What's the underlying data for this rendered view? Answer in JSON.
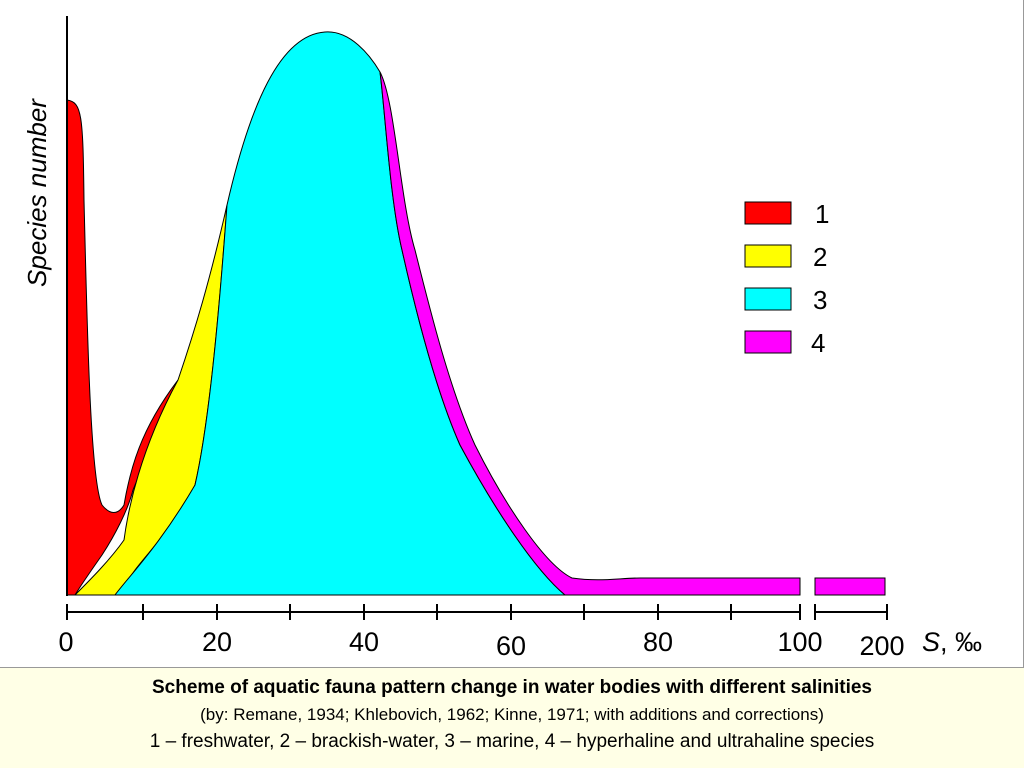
{
  "chart_data": {
    "type": "area",
    "ylabel": "Species number",
    "xlabel": "S, ‰",
    "xlabel_italic_part": "S",
    "xlabel_rest": ", ‰",
    "x_ticks_major": [
      "0",
      "20",
      "40",
      "60",
      "80",
      "100",
      "200"
    ],
    "x_axis_break": "between 100 and 200",
    "legend": {
      "position": "right",
      "entries": [
        {
          "label": "1",
          "color": "#ff0000"
        },
        {
          "label": "2",
          "color": "#ffff00"
        },
        {
          "label": "3",
          "color": "#00ffff"
        },
        {
          "label": "4",
          "color": "#ff00ff"
        }
      ]
    },
    "grid": false,
    "y_ticks": "none",
    "series": [
      {
        "label": "1",
        "color": "#ff0000",
        "salinity_range": [
          0,
          15
        ],
        "peak_at": 0
      },
      {
        "label": "2",
        "color": "#ffff00",
        "salinity_range": [
          2,
          22
        ],
        "peak_at": 22
      },
      {
        "label": "3",
        "color": "#00ffff",
        "salinity_range": [
          5,
          68
        ],
        "peak_at": 35
      },
      {
        "label": "4",
        "color": "#ff00ff",
        "salinity_range": [
          42,
          200
        ],
        "peak_at": 42
      }
    ]
  },
  "caption": {
    "title": "Scheme of aquatic fauna pattern change in water bodies with different salinities",
    "sources": "(by: Remane, 1934; Khlebovich, 1962; Kinne, 1971; with additions and corrections)",
    "legend_text": "1 – freshwater, 2 – brackish-water, 3 – marine, 4 – hyperhaline and ultrahaline species"
  }
}
